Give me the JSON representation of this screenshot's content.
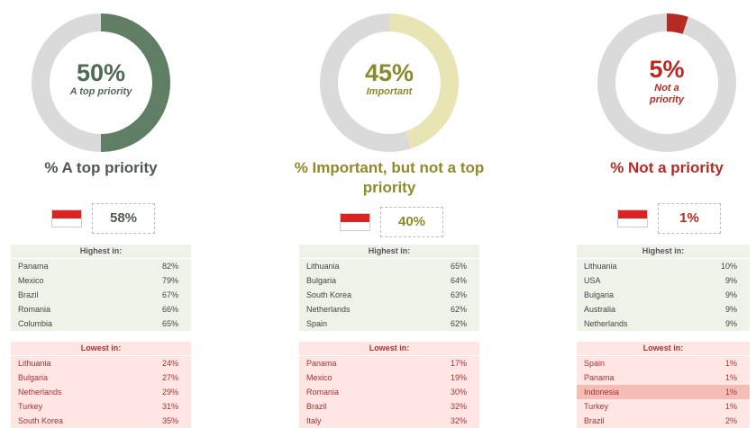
{
  "chart_data": [
    {
      "type": "donut",
      "values": [
        50
      ],
      "value_labels": [
        "50%"
      ],
      "center_label": "A top priority",
      "color": "#5f7e63",
      "number_color": "#4f6b54",
      "title": "% A top priority",
      "title_color": "#4d5a4f",
      "flag_value": "58%",
      "highest": {
        "title": "Highest in:",
        "rows": [
          {
            "country": "Panama",
            "value": "82%"
          },
          {
            "country": "Mexico",
            "value": "79%"
          },
          {
            "country": "Brazil",
            "value": "67%"
          },
          {
            "country": "Romania",
            "value": "66%"
          },
          {
            "country": "Columbia",
            "value": "65%"
          }
        ]
      },
      "lowest": {
        "title": "Lowest in:",
        "rows": [
          {
            "country": "Lithuania",
            "value": "24%"
          },
          {
            "country": "Bulgaria",
            "value": "27%"
          },
          {
            "country": "Netherlands",
            "value": "29%"
          },
          {
            "country": "Turkey",
            "value": "31%"
          },
          {
            "country": "South Korea",
            "value": "35%"
          }
        ]
      }
    },
    {
      "type": "donut",
      "values": [
        45
      ],
      "value_labels": [
        "45%"
      ],
      "center_label": "Important",
      "color": "#e8e4b4",
      "number_color": "#8c8a2e",
      "title": "% Important, but not a top priority",
      "title_color": "#8f8a2a",
      "flag_value": "40%",
      "highest": {
        "title": "Highest in:",
        "rows": [
          {
            "country": "Lithuania",
            "value": "65%"
          },
          {
            "country": "Bulgaria",
            "value": "64%"
          },
          {
            "country": "South Korea",
            "value": "63%"
          },
          {
            "country": "Netherlands",
            "value": "62%"
          },
          {
            "country": "Spain",
            "value": "62%"
          }
        ]
      },
      "lowest": {
        "title": "Lowest in:",
        "rows": [
          {
            "country": "Panama",
            "value": "17%"
          },
          {
            "country": "Mexico",
            "value": "19%"
          },
          {
            "country": "Romania",
            "value": "30%"
          },
          {
            "country": "Brazil",
            "value": "32%"
          },
          {
            "country": "Italy",
            "value": "32%"
          }
        ]
      }
    },
    {
      "type": "donut",
      "values": [
        5
      ],
      "value_labels": [
        "5%"
      ],
      "center_label": "Not a priority",
      "color": "#b52a22",
      "number_color": "#b52a22",
      "title": "% Not a priority",
      "title_color": "#b52a22",
      "flag_value": "1%",
      "highest": {
        "title": "Highest in:",
        "rows": [
          {
            "country": "Lithuania",
            "value": "10%"
          },
          {
            "country": "USA",
            "value": "9%"
          },
          {
            "country": "Bulgaria",
            "value": "9%"
          },
          {
            "country": "Australia",
            "value": "9%"
          },
          {
            "country": "Netherlands",
            "value": "9%"
          }
        ]
      },
      "lowest": {
        "title": "Lowest in:",
        "rows": [
          {
            "country": "Spain",
            "value": "1%"
          },
          {
            "country": "Panama",
            "value": "1%"
          },
          {
            "country": "Indonesia",
            "value": "1%",
            "highlight": true
          },
          {
            "country": "Turkey",
            "value": "1%"
          },
          {
            "country": "Brazil",
            "value": "2%"
          }
        ]
      }
    }
  ]
}
